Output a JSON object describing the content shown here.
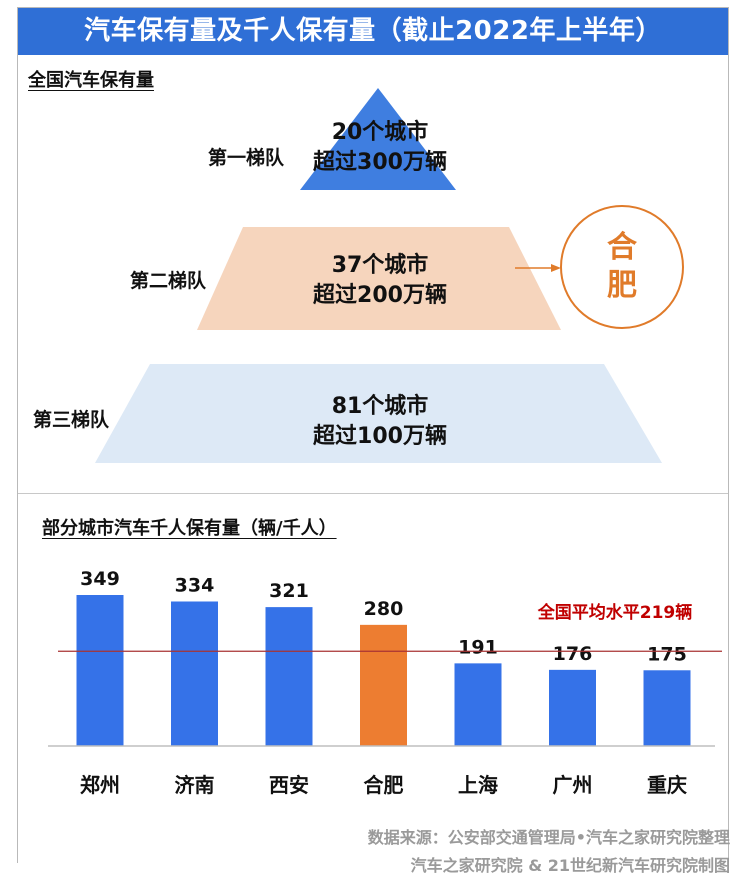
{
  "header": {
    "title": "汽车保有量及千人保有量（截止2022年上半年）"
  },
  "tiers_section": {
    "title": "全国汽车保有量",
    "tiers": [
      {
        "label": "第一梯队",
        "line1": "20个城市",
        "line2": "超过300万辆",
        "color": "#3f7ee0"
      },
      {
        "label": "第二梯队",
        "line1": "37个城市",
        "line2": "超过200万辆",
        "color": "#f6d5bd"
      },
      {
        "label": "第三梯队",
        "line1": "81个城市",
        "line2": "超过100万辆",
        "color": "#dde9f6"
      }
    ],
    "highlight": {
      "line1": "合",
      "line2": "肥",
      "color": "#e07b2a"
    }
  },
  "chart_section": {
    "title": "部分城市汽车千人保有量（辆/千人）"
  },
  "chart_data": {
    "type": "bar",
    "categories": [
      "郑州",
      "济南",
      "西安",
      "合肥",
      "上海",
      "广州",
      "重庆"
    ],
    "values": [
      349,
      334,
      321,
      280,
      191,
      176,
      175
    ],
    "bar_colors": [
      "#3572e8",
      "#3572e8",
      "#3572e8",
      "#ed7d31",
      "#3572e8",
      "#3572e8",
      "#3572e8"
    ],
    "reference_line": {
      "value": 219,
      "label": "全国平均水平219辆",
      "color": "#c00000"
    },
    "ylim": [
      0,
      400
    ]
  },
  "footer": {
    "line1": "数据来源：公安部交通管理局•汽车之家研究院整理",
    "line2": "汽车之家研究院 & 21世纪新汽车研究院制图"
  }
}
